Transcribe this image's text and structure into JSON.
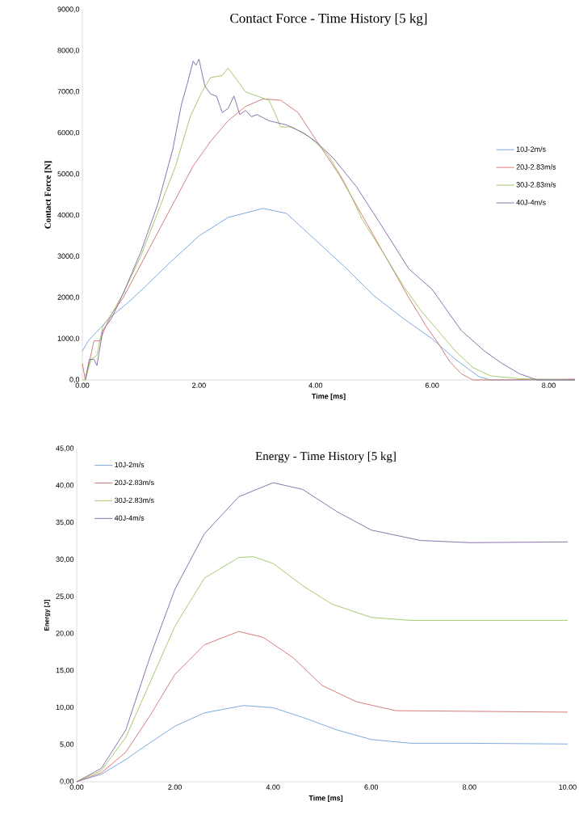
{
  "chart_data": [
    {
      "type": "line",
      "title": "Contact Force - Time History [5 kg]",
      "xlabel": "Time [ms]",
      "ylabel": "Contact Force [N]",
      "legend": "right",
      "line_style": "solid",
      "xlim": [
        0,
        8.45
      ],
      "ylim": [
        0,
        9000
      ],
      "xticks": [
        {
          "value": 0,
          "label": "0.00"
        },
        {
          "value": 2,
          "label": "2.00"
        },
        {
          "value": 4,
          "label": "4.00"
        },
        {
          "value": 6,
          "label": "6.00"
        },
        {
          "value": 8,
          "label": "8.00"
        }
      ],
      "yticks": [
        {
          "value": 0,
          "label": "0,0"
        },
        {
          "value": 1000,
          "label": "1000,0"
        },
        {
          "value": 2000,
          "label": "2000,0"
        },
        {
          "value": 3000,
          "label": "3000,0"
        },
        {
          "value": 4000,
          "label": "4000,0"
        },
        {
          "value": 5000,
          "label": "5000,0"
        },
        {
          "value": 6000,
          "label": "6000,0"
        },
        {
          "value": 7000,
          "label": "7000,0"
        },
        {
          "value": 8000,
          "label": "8000,0"
        },
        {
          "value": 9000,
          "label": "9000,0"
        }
      ],
      "series": [
        {
          "name": "10J-2m/s",
          "color": "#6fa0dc",
          "x": [
            0,
            0.1,
            0.3,
            0.5,
            0.8,
            1.1,
            1.5,
            2.0,
            2.5,
            3.1,
            3.5,
            4.0,
            4.5,
            5.0,
            5.5,
            6.0,
            6.4,
            6.8,
            7.0,
            8.45
          ],
          "values": [
            700,
            950,
            1250,
            1550,
            1900,
            2300,
            2850,
            3500,
            3950,
            4170,
            4050,
            3400,
            2750,
            2050,
            1500,
            1000,
            500,
            80,
            0,
            0
          ]
        },
        {
          "name": "20J-2.83m/s",
          "color": "#d06d6a",
          "x": [
            0,
            0.05,
            0.2,
            0.3,
            0.4,
            0.5,
            0.7,
            1.0,
            1.3,
            1.6,
            1.9,
            2.2,
            2.5,
            2.8,
            3.1,
            3.4,
            3.7,
            4.0,
            4.4,
            4.8,
            5.2,
            5.6,
            5.9,
            6.1,
            6.3,
            6.5,
            6.7,
            6.9,
            7.2,
            8.45
          ],
          "values": [
            400,
            0,
            950,
            950,
            1300,
            1600,
            2000,
            2800,
            3600,
            4400,
            5200,
            5800,
            6300,
            6650,
            6830,
            6800,
            6500,
            5850,
            5000,
            4000,
            3000,
            2000,
            1300,
            900,
            450,
            150,
            0,
            0,
            0,
            20
          ]
        },
        {
          "name": "30J-2.83m/s",
          "color": "#9bc45e",
          "x": [
            0,
            0.05,
            0.15,
            0.25,
            0.35,
            0.5,
            0.7,
            1.0,
            1.3,
            1.6,
            1.85,
            2.05,
            2.2,
            2.4,
            2.5,
            2.7,
            2.8,
            3.0,
            3.2,
            3.3,
            3.4,
            3.6,
            3.9,
            4.2,
            4.5,
            4.8,
            5.2,
            5.5,
            5.8,
            6.1,
            6.4,
            6.7,
            7.0,
            7.5,
            8.45
          ],
          "values": [
            0,
            0,
            500,
            600,
            1300,
            1600,
            2100,
            3000,
            4100,
            5200,
            6400,
            7000,
            7350,
            7400,
            7580,
            7200,
            7000,
            6900,
            6800,
            6500,
            6150,
            6150,
            5900,
            5500,
            4800,
            3900,
            3000,
            2300,
            1700,
            1200,
            700,
            300,
            100,
            30,
            0
          ]
        },
        {
          "name": "40J-4m/s",
          "color": "#8064a2",
          "x": [
            0.05,
            0.12,
            0.2,
            0.25,
            0.35,
            0.5,
            0.7,
            1.0,
            1.3,
            1.55,
            1.7,
            1.8,
            1.9,
            1.95,
            2.0,
            2.1,
            2.2,
            2.3,
            2.4,
            2.5,
            2.6,
            2.7,
            2.8,
            2.9,
            3.0,
            3.2,
            3.5,
            3.8,
            4.0,
            4.3,
            4.7,
            5.2,
            5.6,
            6.0,
            6.2,
            6.5,
            6.9,
            7.2,
            7.5,
            7.8,
            8.45
          ],
          "values": [
            0,
            500,
            500,
            350,
            1200,
            1500,
            2100,
            3100,
            4300,
            5600,
            6700,
            7200,
            7750,
            7650,
            7800,
            7150,
            6950,
            6900,
            6500,
            6600,
            6900,
            6450,
            6550,
            6400,
            6450,
            6300,
            6200,
            6000,
            5800,
            5400,
            4700,
            3600,
            2700,
            2200,
            1800,
            1200,
            700,
            400,
            150,
            0,
            0
          ]
        }
      ]
    },
    {
      "type": "line",
      "title": "Energy - Time History [5 kg]",
      "xlabel": "Time [ms]",
      "ylabel": "Energy [J]",
      "legend": "top left",
      "line_style": "solid",
      "xlim": [
        0,
        10.15
      ],
      "ylim": [
        0,
        45
      ],
      "xticks": [
        {
          "value": 0,
          "label": "0.00"
        },
        {
          "value": 2,
          "label": "2.00"
        },
        {
          "value": 4,
          "label": "4.00"
        },
        {
          "value": 6,
          "label": "6.00"
        },
        {
          "value": 8,
          "label": "8.00"
        },
        {
          "value": 10,
          "label": "10.00"
        }
      ],
      "yticks": [
        {
          "value": 0,
          "label": "0,00"
        },
        {
          "value": 5,
          "label": "5,00"
        },
        {
          "value": 10,
          "label": "10,00"
        },
        {
          "value": 15,
          "label": "15,00"
        },
        {
          "value": 20,
          "label": "20,00"
        },
        {
          "value": 25,
          "label": "25,00"
        },
        {
          "value": 30,
          "label": "30,00"
        },
        {
          "value": 35,
          "label": "35,00"
        },
        {
          "value": 40,
          "label": "40,00"
        },
        {
          "value": 45,
          "label": "45,00"
        }
      ],
      "series": [
        {
          "name": "10J-2m/s",
          "color": "#6fa0dc",
          "x": [
            0,
            0.5,
            1.0,
            1.5,
            2.0,
            2.6,
            3.4,
            4.0,
            4.6,
            5.3,
            6.0,
            6.8,
            8,
            10
          ],
          "values": [
            0,
            1,
            3,
            5.3,
            7.5,
            9.3,
            10.3,
            10,
            8.7,
            7,
            5.7,
            5.2,
            5.2,
            5.1
          ]
        },
        {
          "name": "20J-2.83m/s",
          "color": "#d06d6a",
          "x": [
            0,
            0.5,
            1.0,
            1.5,
            2.0,
            2.6,
            3.3,
            3.8,
            4.4,
            5.0,
            5.7,
            6.5,
            10
          ],
          "values": [
            0,
            1.2,
            4,
            9,
            14.5,
            18.5,
            20.3,
            19.5,
            16.8,
            13,
            10.8,
            9.6,
            9.4
          ]
        },
        {
          "name": "30J-2.83m/s",
          "color": "#9bc45e",
          "x": [
            0,
            0.5,
            1.0,
            1.5,
            2.0,
            2.6,
            3.3,
            3.6,
            4.0,
            4.6,
            5.2,
            6.0,
            6.8,
            8,
            10
          ],
          "values": [
            0,
            1.5,
            6,
            13.5,
            21,
            27.5,
            30.3,
            30.4,
            29.5,
            26.5,
            24,
            22.2,
            21.8,
            21.8,
            21.8
          ]
        },
        {
          "name": "40J-4m/s",
          "color": "#8064a2",
          "x": [
            0,
            0.5,
            1.0,
            1.5,
            2.0,
            2.6,
            3.3,
            4.0,
            4.6,
            5.3,
            6.0,
            7.0,
            8,
            10
          ],
          "values": [
            0,
            1.8,
            7,
            17,
            26,
            33.5,
            38.5,
            40.4,
            39.5,
            36.5,
            34,
            32.6,
            32.3,
            32.4
          ]
        }
      ]
    }
  ]
}
